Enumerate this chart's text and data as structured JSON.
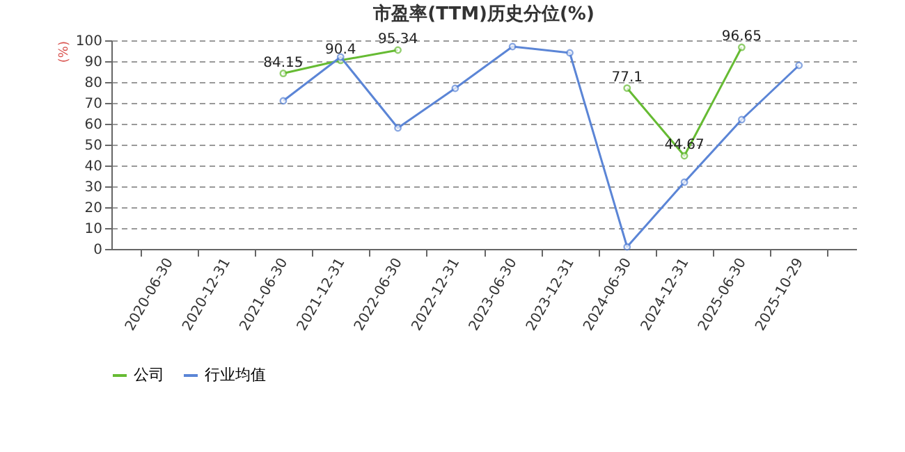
{
  "chart_data": {
    "type": "line",
    "title": "市盈率(TTM)历史分位(%)",
    "ylabel": "(%)",
    "categories": [
      "2020-06-30",
      "2020-12-31",
      "2021-06-30",
      "2021-12-31",
      "2022-06-30",
      "2022-12-31",
      "2023-06-30",
      "2023-12-31",
      "2024-06-30",
      "2024-12-31",
      "2025-06-30",
      "2025-10-29"
    ],
    "series": [
      {
        "name": "公司",
        "color": "#66bb33",
        "values": [
          null,
          null,
          84.15,
          90.4,
          95.34,
          null,
          null,
          null,
          77.1,
          44.67,
          96.65,
          null
        ],
        "value_labels": [
          null,
          null,
          "84.15",
          "90.4",
          "95.34",
          null,
          null,
          null,
          "77.1",
          "44.67",
          "96.65",
          null
        ]
      },
      {
        "name": "行业均值",
        "color": "#5b85d6",
        "values": [
          null,
          null,
          71,
          92,
          58,
          77,
          97,
          94,
          1,
          32,
          62,
          88
        ]
      }
    ],
    "ylim": [
      0,
      100
    ],
    "yticks": [
      0,
      10,
      20,
      30,
      40,
      50,
      60,
      70,
      80,
      90,
      100
    ],
    "grid": "y",
    "legend": "bottom",
    "marker": "circle",
    "line_style": "solid"
  }
}
